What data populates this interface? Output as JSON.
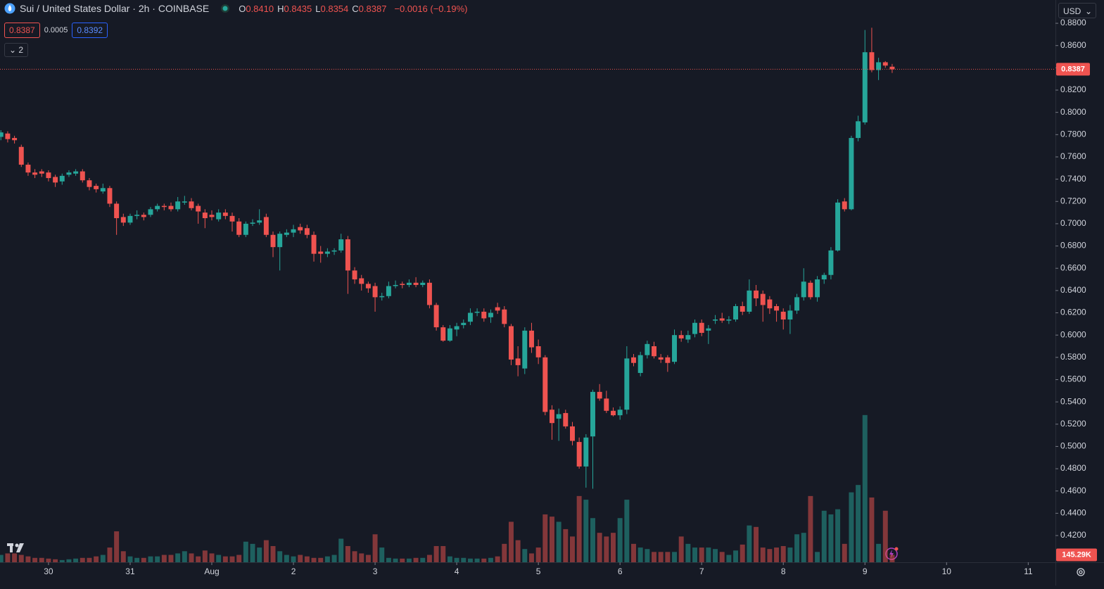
{
  "chart_data": {
    "type": "candlestick",
    "title": "Sui / United States Dollar · 2h · COINBASE",
    "ohlc_header": [
      {
        "key": "O",
        "value": "0.8410"
      },
      {
        "key": "H",
        "value": "0.8435"
      },
      {
        "key": "L",
        "value": "0.8354"
      },
      {
        "key": "C",
        "value": "0.8387"
      }
    ],
    "change": "−0.0016 (−0.19%)",
    "bid": "0.8387",
    "spread": "0.0005",
    "ask": "0.8392",
    "indicators_count": "2",
    "currency": "USD",
    "up_color": "#26a69a",
    "down_color": "#ef5350",
    "grid": false,
    "xlim": [
      -0.13,
      155.0
    ],
    "xticks": [
      {
        "value": 7,
        "label": "30"
      },
      {
        "value": 19,
        "label": "31"
      },
      {
        "value": 31,
        "label": "Aug"
      },
      {
        "value": 43,
        "label": "2"
      },
      {
        "value": 55,
        "label": "3"
      },
      {
        "value": 67,
        "label": "4"
      },
      {
        "value": 79,
        "label": "5"
      },
      {
        "value": 91,
        "label": "6"
      },
      {
        "value": 103,
        "label": "7"
      },
      {
        "value": 115,
        "label": "8"
      },
      {
        "value": 127,
        "label": "9"
      },
      {
        "value": 139,
        "label": "10"
      },
      {
        "value": 151,
        "label": "11"
      }
    ],
    "ylim": [
      0.396,
      0.9009
    ],
    "yticks": [
      {
        "value": 0.88,
        "label": "0.8800"
      },
      {
        "value": 0.86,
        "label": "0.8600"
      },
      {
        "value": 0.84,
        "label": "0.8400"
      },
      {
        "value": 0.82,
        "label": "0.8200"
      },
      {
        "value": 0.8,
        "label": "0.8000"
      },
      {
        "value": 0.78,
        "label": "0.7800"
      },
      {
        "value": 0.76,
        "label": "0.7600"
      },
      {
        "value": 0.74,
        "label": "0.7400"
      },
      {
        "value": 0.72,
        "label": "0.7200"
      },
      {
        "value": 0.7,
        "label": "0.7000"
      },
      {
        "value": 0.68,
        "label": "0.6800"
      },
      {
        "value": 0.66,
        "label": "0.6600"
      },
      {
        "value": 0.64,
        "label": "0.6400"
      },
      {
        "value": 0.62,
        "label": "0.6200"
      },
      {
        "value": 0.6,
        "label": "0.6000"
      },
      {
        "value": 0.58,
        "label": "0.5800"
      },
      {
        "value": 0.56,
        "label": "0.5600"
      },
      {
        "value": 0.54,
        "label": "0.5400"
      },
      {
        "value": 0.52,
        "label": "0.5200"
      },
      {
        "value": 0.5,
        "label": "0.5000"
      },
      {
        "value": 0.48,
        "label": "0.4800"
      },
      {
        "value": 0.46,
        "label": "0.4600"
      },
      {
        "value": 0.44,
        "label": "0.4400"
      },
      {
        "value": 0.42,
        "label": "0.4200"
      }
    ],
    "price_label": {
      "value": 0.8387,
      "label": "0.8387"
    },
    "volume_lim": [
      0,
      11000
    ],
    "open": [
      0.778,
      0.781,
      0.777,
      0.769,
      0.753,
      0.746,
      0.747,
      0.746,
      0.742,
      0.738,
      0.744,
      0.745,
      0.747,
      0.739,
      0.734,
      0.729,
      0.732,
      0.718,
      0.706,
      0.701,
      0.707,
      0.708,
      0.708,
      0.713,
      0.716,
      0.716,
      0.713,
      0.719,
      0.72,
      0.716,
      0.71,
      0.708,
      0.704,
      0.71,
      0.707,
      0.702,
      0.69,
      0.7,
      0.701,
      0.706,
      0.69,
      0.679,
      0.69,
      0.692,
      0.697,
      0.696,
      0.69,
      0.675,
      0.673,
      0.675,
      0.676,
      0.686,
      0.658,
      0.651,
      0.646,
      0.644,
      0.634,
      0.635,
      0.644,
      0.646,
      0.645,
      0.647,
      0.645,
      0.647,
      0.627,
      0.607,
      0.595,
      0.605,
      0.609,
      0.612,
      0.62,
      0.621,
      0.616,
      0.625,
      0.623,
      0.608,
      0.579,
      0.57,
      0.604,
      0.59,
      0.58,
      0.533,
      0.525,
      0.53,
      0.518,
      0.504,
      0.482,
      0.509,
      0.549,
      0.543,
      0.532,
      0.528,
      0.533,
      0.58,
      0.566,
      0.582,
      0.59,
      0.58,
      0.58,
      0.576,
      0.6,
      0.596,
      0.601,
      0.611,
      0.604,
      0.613,
      0.615,
      0.613,
      0.614,
      0.626,
      0.621,
      0.64,
      0.637,
      0.632,
      0.626,
      0.621,
      0.614,
      0.622,
      0.634,
      0.647,
      0.634,
      0.65,
      0.654,
      0.676,
      0.72,
      0.713,
      0.777,
      0.791,
      0.854,
      0.838,
      0.845,
      0.841
    ],
    "high": [
      0.784,
      0.783,
      0.779,
      0.771,
      0.755,
      0.749,
      0.749,
      0.748,
      0.744,
      0.745,
      0.748,
      0.749,
      0.749,
      0.741,
      0.736,
      0.736,
      0.734,
      0.72,
      0.709,
      0.709,
      0.712,
      0.71,
      0.715,
      0.718,
      0.718,
      0.719,
      0.724,
      0.725,
      0.723,
      0.718,
      0.713,
      0.712,
      0.713,
      0.713,
      0.71,
      0.705,
      0.702,
      0.704,
      0.713,
      0.709,
      0.693,
      0.693,
      0.695,
      0.699,
      0.7,
      0.699,
      0.693,
      0.68,
      0.678,
      0.678,
      0.691,
      0.689,
      0.661,
      0.654,
      0.648,
      0.647,
      0.638,
      0.648,
      0.649,
      0.648,
      0.65,
      0.652,
      0.649,
      0.65,
      0.629,
      0.609,
      0.609,
      0.611,
      0.614,
      0.624,
      0.624,
      0.624,
      0.623,
      0.629,
      0.626,
      0.61,
      0.59,
      0.607,
      0.611,
      0.596,
      0.582,
      0.537,
      0.534,
      0.533,
      0.522,
      0.508,
      0.511,
      0.551,
      0.556,
      0.55,
      0.535,
      0.536,
      0.59,
      0.583,
      0.585,
      0.595,
      0.594,
      0.583,
      0.582,
      0.605,
      0.604,
      0.604,
      0.614,
      0.614,
      0.609,
      0.618,
      0.62,
      0.617,
      0.628,
      0.63,
      0.65,
      0.645,
      0.64,
      0.635,
      0.628,
      0.624,
      0.627,
      0.637,
      0.66,
      0.649,
      0.653,
      0.656,
      0.679,
      0.722,
      0.723,
      0.779,
      0.797,
      0.874,
      0.876,
      0.849,
      0.846,
      0.8435
    ],
    "low": [
      0.775,
      0.773,
      0.772,
      0.751,
      0.743,
      0.741,
      0.742,
      0.738,
      0.733,
      0.735,
      0.742,
      0.743,
      0.737,
      0.73,
      0.728,
      0.727,
      0.715,
      0.69,
      0.698,
      0.699,
      0.704,
      0.703,
      0.706,
      0.711,
      0.712,
      0.711,
      0.711,
      0.717,
      0.712,
      0.7,
      0.696,
      0.703,
      0.702,
      0.704,
      0.693,
      0.688,
      0.688,
      0.698,
      0.699,
      0.688,
      0.67,
      0.658,
      0.688,
      0.688,
      0.691,
      0.687,
      0.666,
      0.665,
      0.67,
      0.672,
      0.674,
      0.637,
      0.646,
      0.64,
      0.638,
      0.621,
      0.631,
      0.633,
      0.642,
      0.642,
      0.643,
      0.643,
      0.643,
      0.624,
      0.604,
      0.594,
      0.594,
      0.599,
      0.606,
      0.609,
      0.617,
      0.612,
      0.611,
      0.619,
      0.607,
      0.573,
      0.563,
      0.565,
      0.584,
      0.574,
      0.528,
      0.506,
      0.505,
      0.516,
      0.501,
      0.48,
      0.463,
      0.462,
      0.541,
      0.53,
      0.527,
      0.524,
      0.529,
      0.572,
      0.563,
      0.579,
      0.579,
      0.575,
      0.567,
      0.574,
      0.594,
      0.593,
      0.598,
      0.599,
      0.592,
      0.61,
      0.611,
      0.61,
      0.612,
      0.618,
      0.619,
      0.626,
      0.612,
      0.619,
      0.612,
      0.605,
      0.601,
      0.619,
      0.631,
      0.632,
      0.63,
      0.646,
      0.65,
      0.675,
      0.711,
      0.712,
      0.774,
      0.789,
      0.836,
      0.829,
      0.84,
      0.8354
    ],
    "close": [
      0.782,
      0.776,
      0.775,
      0.753,
      0.746,
      0.744,
      0.745,
      0.741,
      0.737,
      0.743,
      0.746,
      0.747,
      0.739,
      0.733,
      0.731,
      0.732,
      0.718,
      0.705,
      0.701,
      0.707,
      0.708,
      0.706,
      0.713,
      0.716,
      0.715,
      0.713,
      0.72,
      0.72,
      0.714,
      0.711,
      0.705,
      0.706,
      0.71,
      0.707,
      0.702,
      0.69,
      0.7,
      0.701,
      0.703,
      0.69,
      0.679,
      0.691,
      0.692,
      0.695,
      0.694,
      0.69,
      0.673,
      0.673,
      0.675,
      0.676,
      0.686,
      0.658,
      0.65,
      0.646,
      0.642,
      0.634,
      0.635,
      0.644,
      0.645,
      0.645,
      0.647,
      0.645,
      0.647,
      0.627,
      0.607,
      0.595,
      0.606,
      0.608,
      0.611,
      0.62,
      0.621,
      0.615,
      0.62,
      0.622,
      0.61,
      0.578,
      0.573,
      0.604,
      0.589,
      0.58,
      0.531,
      0.521,
      0.529,
      0.518,
      0.505,
      0.482,
      0.508,
      0.549,
      0.543,
      0.532,
      0.528,
      0.533,
      0.579,
      0.575,
      0.582,
      0.592,
      0.581,
      0.578,
      0.575,
      0.6,
      0.597,
      0.6,
      0.611,
      0.602,
      0.606,
      0.614,
      0.613,
      0.614,
      0.626,
      0.621,
      0.64,
      0.633,
      0.627,
      0.624,
      0.622,
      0.614,
      0.622,
      0.634,
      0.648,
      0.634,
      0.65,
      0.654,
      0.676,
      0.719,
      0.713,
      0.777,
      0.792,
      0.854,
      0.838,
      0.845,
      0.842,
      0.8387
    ],
    "volume": [
      144,
      173,
      173,
      144,
      115,
      86,
      86,
      72,
      58,
      43,
      58,
      72,
      86,
      86,
      115,
      144,
      288,
      605,
      216,
      115,
      86,
      86,
      115,
      115,
      144,
      144,
      173,
      216,
      173,
      115,
      230,
      173,
      144,
      115,
      115,
      144,
      403,
      360,
      288,
      432,
      317,
      216,
      144,
      115,
      144,
      115,
      86,
      86,
      115,
      144,
      461,
      317,
      216,
      173,
      144,
      547,
      288,
      86,
      72,
      72,
      72,
      86,
      86,
      144,
      317,
      317,
      115,
      86,
      86,
      72,
      72,
      72,
      86,
      115,
      360,
      792,
      432,
      259,
      173,
      288,
      936,
      893,
      792,
      648,
      504,
      1296,
      1224,
      864,
      576,
      504,
      576,
      864,
      1224,
      360,
      288,
      259,
      202,
      202,
      202,
      202,
      504,
      360,
      288,
      288,
      288,
      259,
      202,
      144,
      230,
      346,
      720,
      691,
      288,
      259,
      288,
      317,
      288,
      547,
      576,
      1296,
      202,
      1008,
      936,
      1037,
      360,
      1368,
      1512,
      2880,
      1267,
      360,
      1008,
      145.29
    ],
    "volume_value_labels": {
      "131": "145.29K"
    }
  }
}
